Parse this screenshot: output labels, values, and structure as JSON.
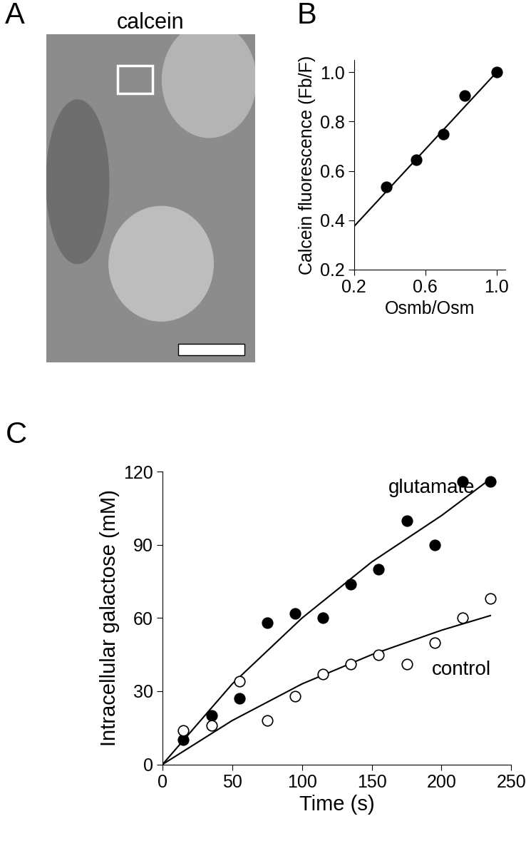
{
  "chart_data": [
    {
      "type": "image",
      "panel": "A",
      "title": "calcein"
    },
    {
      "type": "scatter",
      "panel": "B",
      "x_label": "Osmb/Osm",
      "y_label": "Calcein fluorescence (Fb/F)",
      "xlim": [
        0.2,
        1.05
      ],
      "xticks": [
        0.2,
        0.6,
        1.0
      ],
      "ylim": [
        0.2,
        1.05
      ],
      "yticks": [
        0.2,
        0.4,
        0.6,
        0.8,
        1.0
      ],
      "series": [
        {
          "type": "scatter",
          "marker": "filled",
          "color": "black",
          "x": [
            0.38,
            0.55,
            0.7,
            0.82,
            1.0
          ],
          "values": [
            0.535,
            0.645,
            0.75,
            0.905,
            1.0
          ]
        },
        {
          "type": "line",
          "color": "black",
          "x": [
            0.2,
            1.0
          ],
          "values": [
            0.375,
            1.0
          ]
        }
      ]
    },
    {
      "type": "scatter",
      "panel": "C",
      "x_label": "Time (s)",
      "y_label": "Intracellular galactose (mM)",
      "xlim": [
        0,
        250
      ],
      "xticks": [
        0,
        50,
        100,
        150,
        200,
        250
      ],
      "ylim": [
        0,
        120
      ],
      "yticks": [
        0,
        30,
        60,
        90,
        120
      ],
      "series": [
        {
          "type": "scatter",
          "name": "glutamate",
          "marker": "filled",
          "color": "black",
          "x": [
            15,
            35,
            55,
            75,
            95,
            115,
            135,
            155,
            175,
            195,
            215,
            235
          ],
          "values": [
            10,
            20,
            27,
            58,
            62,
            60,
            74,
            80,
            100,
            90,
            116,
            116
          ],
          "fit": {
            "x": [
              0,
              50,
              100,
              150,
              200,
              235
            ],
            "values": [
              0,
              33,
              60,
              83,
              102,
              117
            ]
          }
        },
        {
          "type": "scatter",
          "name": "control",
          "marker": "open",
          "color": "black",
          "x": [
            15,
            35,
            55,
            75,
            95,
            115,
            135,
            155,
            175,
            195,
            215,
            235
          ],
          "values": [
            14,
            16,
            34,
            18,
            28,
            37,
            41,
            45,
            41,
            50,
            60,
            68
          ],
          "fit": {
            "x": [
              0,
              50,
              100,
              150,
              200,
              235
            ],
            "values": [
              0,
              18,
              33,
              45,
              55,
              61
            ]
          }
        }
      ]
    }
  ]
}
